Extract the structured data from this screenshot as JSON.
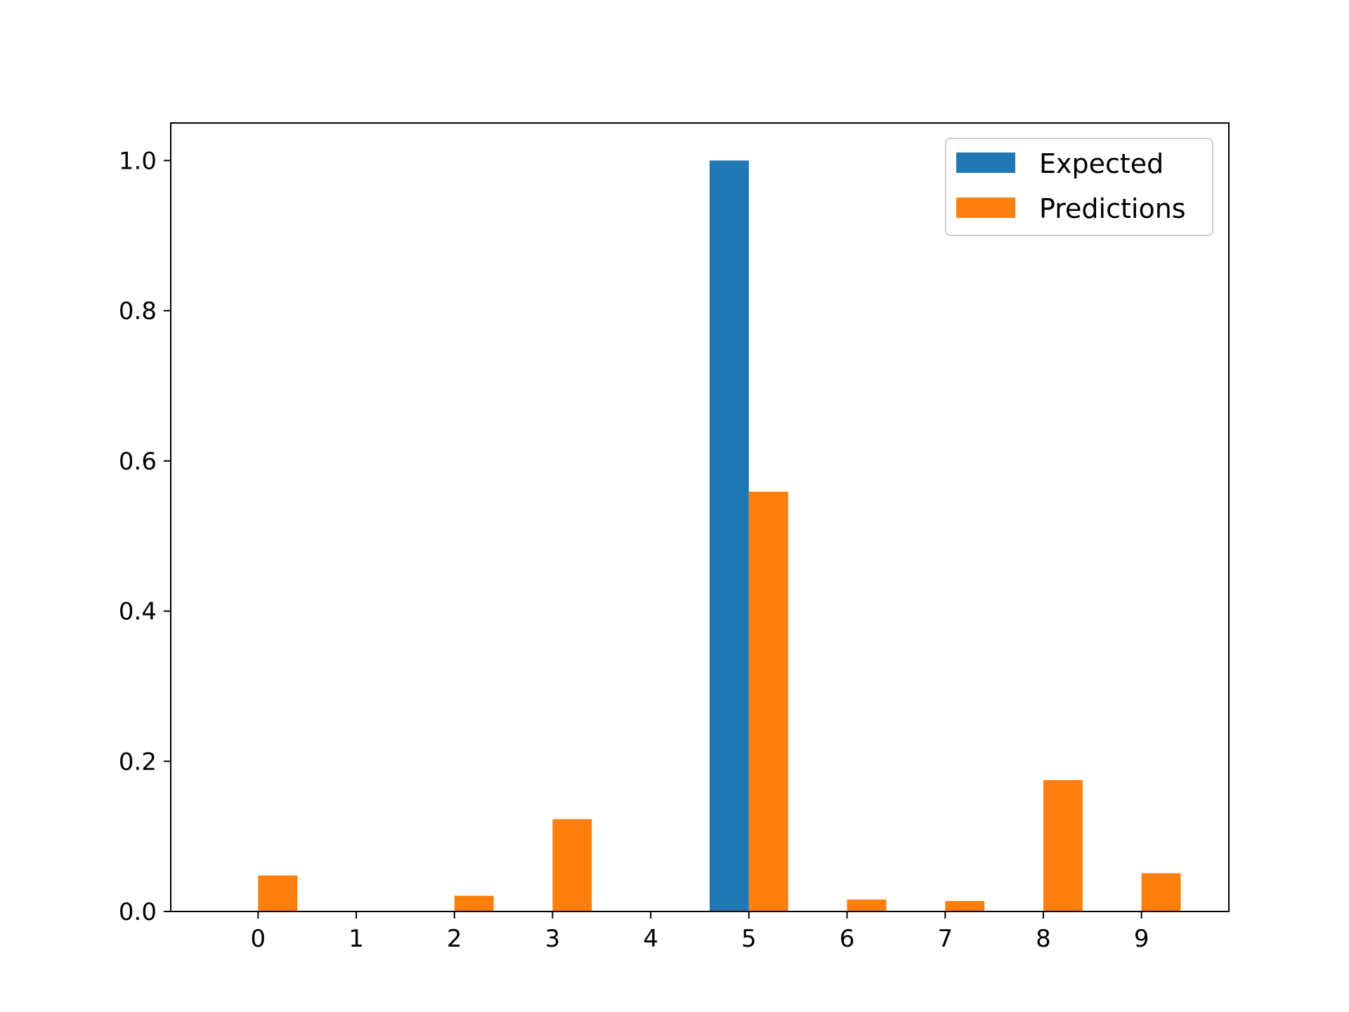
{
  "chart_data": {
    "type": "bar",
    "categories": [
      "0",
      "1",
      "2",
      "3",
      "4",
      "5",
      "6",
      "7",
      "8",
      "9"
    ],
    "series": [
      {
        "name": "Expected",
        "color": "#1f77b4",
        "values": [
          0,
          0,
          0,
          0,
          0,
          1.0,
          0,
          0,
          0,
          0
        ]
      },
      {
        "name": "Predictions",
        "color": "#ff7f0e",
        "values": [
          0.048,
          0.0,
          0.021,
          0.123,
          0.0,
          0.559,
          0.016,
          0.014,
          0.175,
          0.051
        ]
      }
    ],
    "title": "",
    "xlabel": "",
    "ylabel": "",
    "xlim": [
      -0.89,
      9.89
    ],
    "ylim": [
      0,
      1.05
    ],
    "yticks": [
      "0.0",
      "0.2",
      "0.4",
      "0.6",
      "0.8",
      "1.0"
    ],
    "ytick_values": [
      0,
      0.2,
      0.4,
      0.6,
      0.8,
      1.0
    ],
    "grid": false,
    "legend": "top-right"
  }
}
